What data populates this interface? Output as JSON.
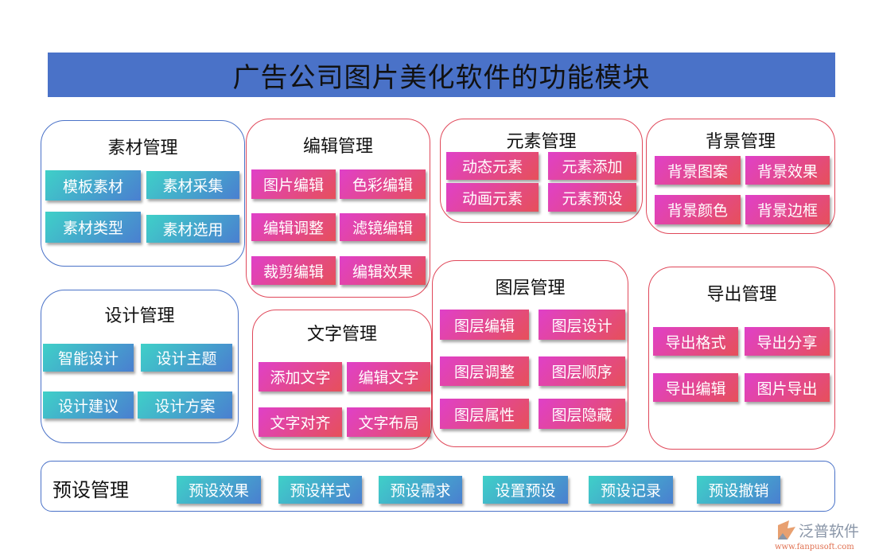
{
  "title": "广告公司图片美化软件的功能模块",
  "groups": [
    {
      "title": "素材管理",
      "items": [
        "模板素材",
        "素材采集",
        "素材类型",
        "素材选用"
      ]
    },
    {
      "title": "编辑管理",
      "items": [
        "图片编辑",
        "色彩编辑",
        "编辑调整",
        "滤镜编辑",
        "裁剪编辑",
        "编辑效果"
      ]
    },
    {
      "title": "元素管理",
      "items": [
        "动态元素",
        "元素添加",
        "动画元素",
        "元素预设"
      ]
    },
    {
      "title": "背景管理",
      "items": [
        "背景图案",
        "背景效果",
        "背景颜色",
        "背景边框"
      ]
    },
    {
      "title": "设计管理",
      "items": [
        "智能设计",
        "设计主题",
        "设计建议",
        "设计方案"
      ]
    },
    {
      "title": "文字管理",
      "items": [
        "添加文字",
        "编辑文字",
        "文字对齐",
        "文字布局"
      ]
    },
    {
      "title": "图层管理",
      "items": [
        "图层编辑",
        "图层设计",
        "图层调整",
        "图层顺序",
        "图层属性",
        "图层隐藏"
      ]
    },
    {
      "title": "导出管理",
      "items": [
        "导出格式",
        "导出分享",
        "导出编辑",
        "图片导出"
      ]
    },
    {
      "title": "预设管理",
      "items": [
        "预设效果",
        "预设样式",
        "预设需求",
        "设置预设",
        "预设记录",
        "预设撤销"
      ]
    }
  ],
  "logo": {
    "name": "泛普软件",
    "url": "www.fanpusoft.com"
  },
  "colors": {
    "header": "#4a72c8",
    "blue_border": "#4a72c8",
    "red_border": "#e0485a"
  }
}
